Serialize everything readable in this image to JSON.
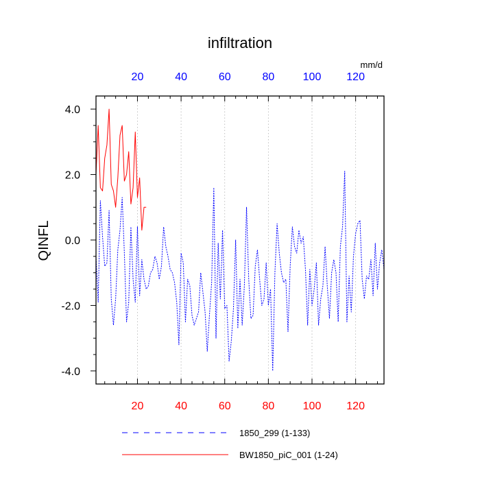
{
  "chart_data": {
    "type": "line",
    "title": "infiltration",
    "units": "mm/d",
    "ylabel": "QINFL",
    "xlim": [
      1,
      133
    ],
    "ylim": [
      -4.4,
      4.4
    ],
    "x_ticks": [
      20,
      40,
      60,
      80,
      100,
      120
    ],
    "y_ticks": [
      -4.0,
      -2.0,
      0.0,
      2.0,
      4.0
    ],
    "y_tick_labels": [
      "-4.0",
      "-2.0",
      "0.0",
      "2.0",
      "4.0"
    ],
    "bottom_tick_color": "#ff0000",
    "top_tick_color": "#0000ff",
    "grid": "vertical dotted",
    "series": [
      {
        "name": "1850_299 (1-133)",
        "color": "#0000ff",
        "dash": "dotted",
        "x_start": 1,
        "values": [
          -0.5,
          -1.9,
          1.2,
          0.1,
          -0.8,
          -0.7,
          0.9,
          -1.8,
          -2.6,
          -1.8,
          -0.3,
          0.3,
          1.3,
          -0.4,
          -2.5,
          -1.9,
          0.4,
          -1.2,
          -1.9,
          0.4,
          -1.7,
          -0.6,
          -1.2,
          -1.5,
          -1.4,
          -1.0,
          -0.9,
          -0.5,
          -0.7,
          -1.2,
          -0.8,
          0.4,
          -0.2,
          -0.5,
          -0.9,
          -1.0,
          -1.3,
          -1.9,
          -3.2,
          -0.4,
          -0.7,
          -2.5,
          -1.2,
          -1.4,
          -2.3,
          -2.6,
          -2.4,
          -2.2,
          -1.0,
          -1.6,
          -2.2,
          -3.4,
          -2.3,
          -1.3,
          1.6,
          -3.0,
          -0.1,
          -1.8,
          0.3,
          -2.1,
          -2.0,
          -3.7,
          -3.1,
          -2.1,
          0.0,
          -2.7,
          -1.2,
          -2.6,
          -1.4,
          1.0,
          -1.2,
          -2.4,
          -2.3,
          -0.8,
          -0.3,
          -1.2,
          -2.0,
          -1.8,
          -0.7,
          -2.0,
          -1.5,
          -4.0,
          -1.0,
          0.5,
          -0.4,
          -1.0,
          -1.3,
          -1.2,
          -2.8,
          -0.8,
          0.4,
          -0.2,
          -0.4,
          0.3,
          -0.1,
          0.1,
          -0.9,
          -2.6,
          -0.9,
          -2.0,
          -1.5,
          -0.7,
          -2.6,
          -1.8,
          -1.4,
          -0.2,
          -1.4,
          -2.4,
          -1.0,
          -0.6,
          -1.0,
          -2.5,
          -0.2,
          0.4,
          2.1,
          -2.5,
          -1.1,
          -2.2,
          -0.5,
          0.2,
          0.5,
          0.6,
          -1.2,
          -1.8,
          -1.1,
          -1.2,
          -0.6,
          -1.7,
          -0.1,
          -1.5,
          -0.7,
          -0.3,
          -0.9
        ]
      },
      {
        "name": "BW1850_piC_001 (1-24)",
        "color": "#ff0000",
        "dash": "solid",
        "x_start": 1,
        "values": [
          2.0,
          3.5,
          1.6,
          1.5,
          2.5,
          2.9,
          4.0,
          1.7,
          1.5,
          1.0,
          1.9,
          3.2,
          3.5,
          1.8,
          2.0,
          2.7,
          1.1,
          1.6,
          3.3,
          1.3,
          1.9,
          0.3,
          1.0,
          1.0
        ]
      }
    ]
  }
}
